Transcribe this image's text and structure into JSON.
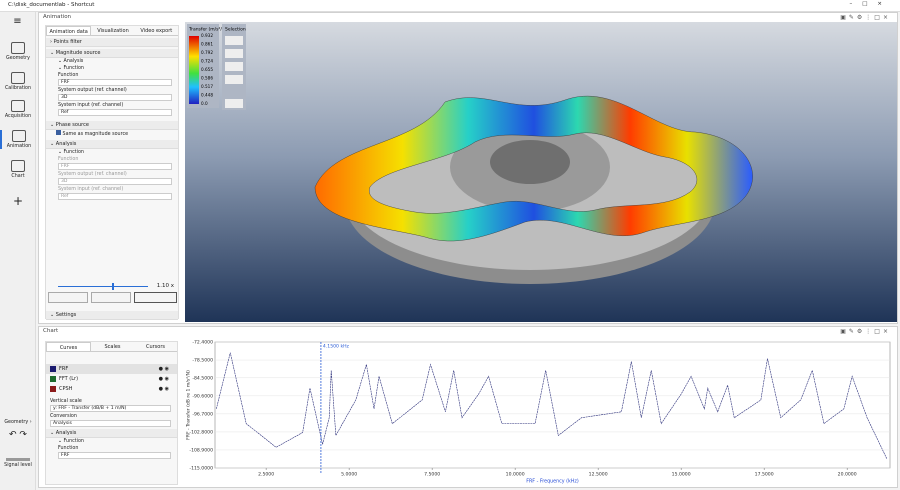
{
  "window_title": "C:\\disk_documentlab - Shortcut",
  "nav": [
    "Geometry",
    "Calibration",
    "Acquisition",
    "Animation",
    "Chart"
  ],
  "nav_bottom": {
    "geometry": "Geometry",
    "signal": "Signal level"
  },
  "animation": {
    "title": "Animation",
    "tabs": [
      "Animation data",
      "Visualization",
      "Video export"
    ],
    "points_filter": "Points filter",
    "magnitude_source": "Magnitude source",
    "analysis": "Analysis",
    "function": "Function",
    "fields": [
      {
        "label": "Function",
        "value": "FRF"
      },
      {
        "label": "System output (ref. channel)",
        "value": "3D"
      },
      {
        "label": "System input (ref. channel)",
        "value": "Ref"
      }
    ],
    "phase_source": "Phase source",
    "same_as": "Same as magnitude source",
    "phase_analysis": "Analysis",
    "phase_function": "Function",
    "phase_fields": [
      {
        "label": "Function",
        "value": "FRF"
      },
      {
        "label": "System output (ref. channel)",
        "value": "3D"
      },
      {
        "label": "System input (ref. channel)",
        "value": "Ref"
      }
    ],
    "speed": "1.10 x",
    "settings": "Settings",
    "selection": "Selection",
    "legend": {
      "title": "Transfer (m/s²/N)",
      "labels": [
        "0.932",
        "0.861",
        "0.792",
        "0.724",
        "0.655",
        "0.586",
        "0.517",
        "0.448",
        "0.0"
      ]
    }
  },
  "chart_panel": {
    "title": "Chart",
    "tabs": [
      "Curves",
      "Scales",
      "Cursors"
    ],
    "curves": [
      {
        "name": "FRF",
        "color": "#1a1a6e"
      },
      {
        "name": "FFT (Lr)",
        "color": "#1e6b2e"
      },
      {
        "name": "CPSH",
        "color": "#8b1a1a"
      }
    ],
    "vertical_scale": "Vertical scale",
    "scale_value": "y: FRF - Transfer (dB/B + 1 m/N)",
    "conversion": "Conversion",
    "conversion_value": "Analysis",
    "analysis": "Analysis",
    "function": "Function",
    "function_label": "Function",
    "function_value": "FRF"
  },
  "chart_data": {
    "type": "line",
    "xlabel": "FRF - Frequency (kHz)",
    "ylabel": "FRF - Transfer (dB re 1 m/s²/N)",
    "x": [
      1.0,
      1.42,
      1.9,
      2.8,
      3.6,
      3.82,
      4.2,
      4.4,
      4.46,
      4.6,
      5.2,
      5.52,
      5.75,
      5.9,
      6.3,
      7.2,
      7.45,
      7.9,
      8.15,
      8.4,
      8.9,
      9.2,
      9.6,
      10.6,
      10.92,
      11.3,
      12.0,
      13.2,
      13.5,
      13.8,
      14.1,
      14.4,
      15.0,
      15.3,
      15.7,
      15.8,
      16.1,
      16.4,
      16.6,
      17.4,
      17.6,
      18.0,
      18.6,
      18.95,
      19.3,
      19.9,
      20.15,
      20.6,
      21.2
    ],
    "series": [
      {
        "name": "FRF",
        "color": "#2b2f7a",
        "values": [
          -95,
          -76,
          -100,
          -108,
          -103,
          -88,
          -107,
          -98,
          -82,
          -104,
          -92,
          -80,
          -95,
          -84,
          -100,
          -92,
          -80,
          -96,
          -82,
          -98,
          -90,
          -84,
          -100,
          -100,
          -82,
          -104,
          -98,
          -96,
          -79,
          -98,
          -82,
          -100,
          -90,
          -84,
          -95,
          -88,
          -96,
          -87,
          -98,
          -92,
          -78,
          -98,
          -92,
          -82,
          -100,
          -95,
          -84,
          -98,
          -112
        ]
      }
    ],
    "xlim": [
      0.96,
      21.29
    ],
    "ylim": [
      -115,
      -72.4
    ],
    "xticks": [
      {
        "value": 2.5,
        "label": "2.5000"
      },
      {
        "value": 5,
        "label": "5.0000"
      },
      {
        "value": 7.5,
        "label": "7.5000"
      },
      {
        "value": 10,
        "label": "10.0000"
      },
      {
        "value": 12.5,
        "label": "12.5000"
      },
      {
        "value": 15,
        "label": "15.0000"
      },
      {
        "value": 17.5,
        "label": "17.5000"
      },
      {
        "value": 20,
        "label": "20.0000"
      }
    ],
    "yticks": [
      {
        "value": -72.4,
        "label": "-72.4000"
      },
      {
        "value": -78.5,
        "label": "-78.5000"
      },
      {
        "value": -84.5,
        "label": "-84.5000"
      },
      {
        "value": -90.6,
        "label": "-90.6000"
      },
      {
        "value": -96.7,
        "label": "-96.7000"
      },
      {
        "value": -102.8,
        "label": "-102.8000"
      },
      {
        "value": -108.9,
        "label": "-108.9000"
      },
      {
        "value": -115,
        "label": "-115.0000"
      }
    ],
    "cursor": {
      "value": 4.15,
      "label": "4.1500 kHz"
    }
  }
}
